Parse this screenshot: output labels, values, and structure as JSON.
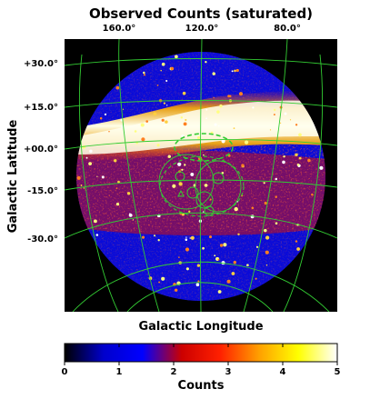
{
  "chart_data": {
    "type": "heatmap",
    "title": "Observed Counts (saturated)",
    "xlabel": "Galactic Longitude",
    "ylabel": "Galactic Latitude",
    "x_ticks": [
      "160.0°",
      "120.0°",
      "80.0°"
    ],
    "y_ticks": [
      "+30.0°",
      "+15.0°",
      "+00.0°",
      "-15.0°",
      "-30.0°"
    ],
    "colorbar": {
      "label": "Counts",
      "ticks": [
        0,
        1,
        2,
        3,
        4,
        5
      ],
      "range": [
        0,
        5
      ],
      "colormap": [
        "#000000",
        "#0000cc",
        "#0000ff",
        "#cc0000",
        "#ff2000",
        "#ffa000",
        "#ffff00",
        "#ffffff"
      ]
    },
    "grid": true,
    "grid_color": "#33cc33",
    "projection": "all-sky disk",
    "background": "#000000"
  }
}
